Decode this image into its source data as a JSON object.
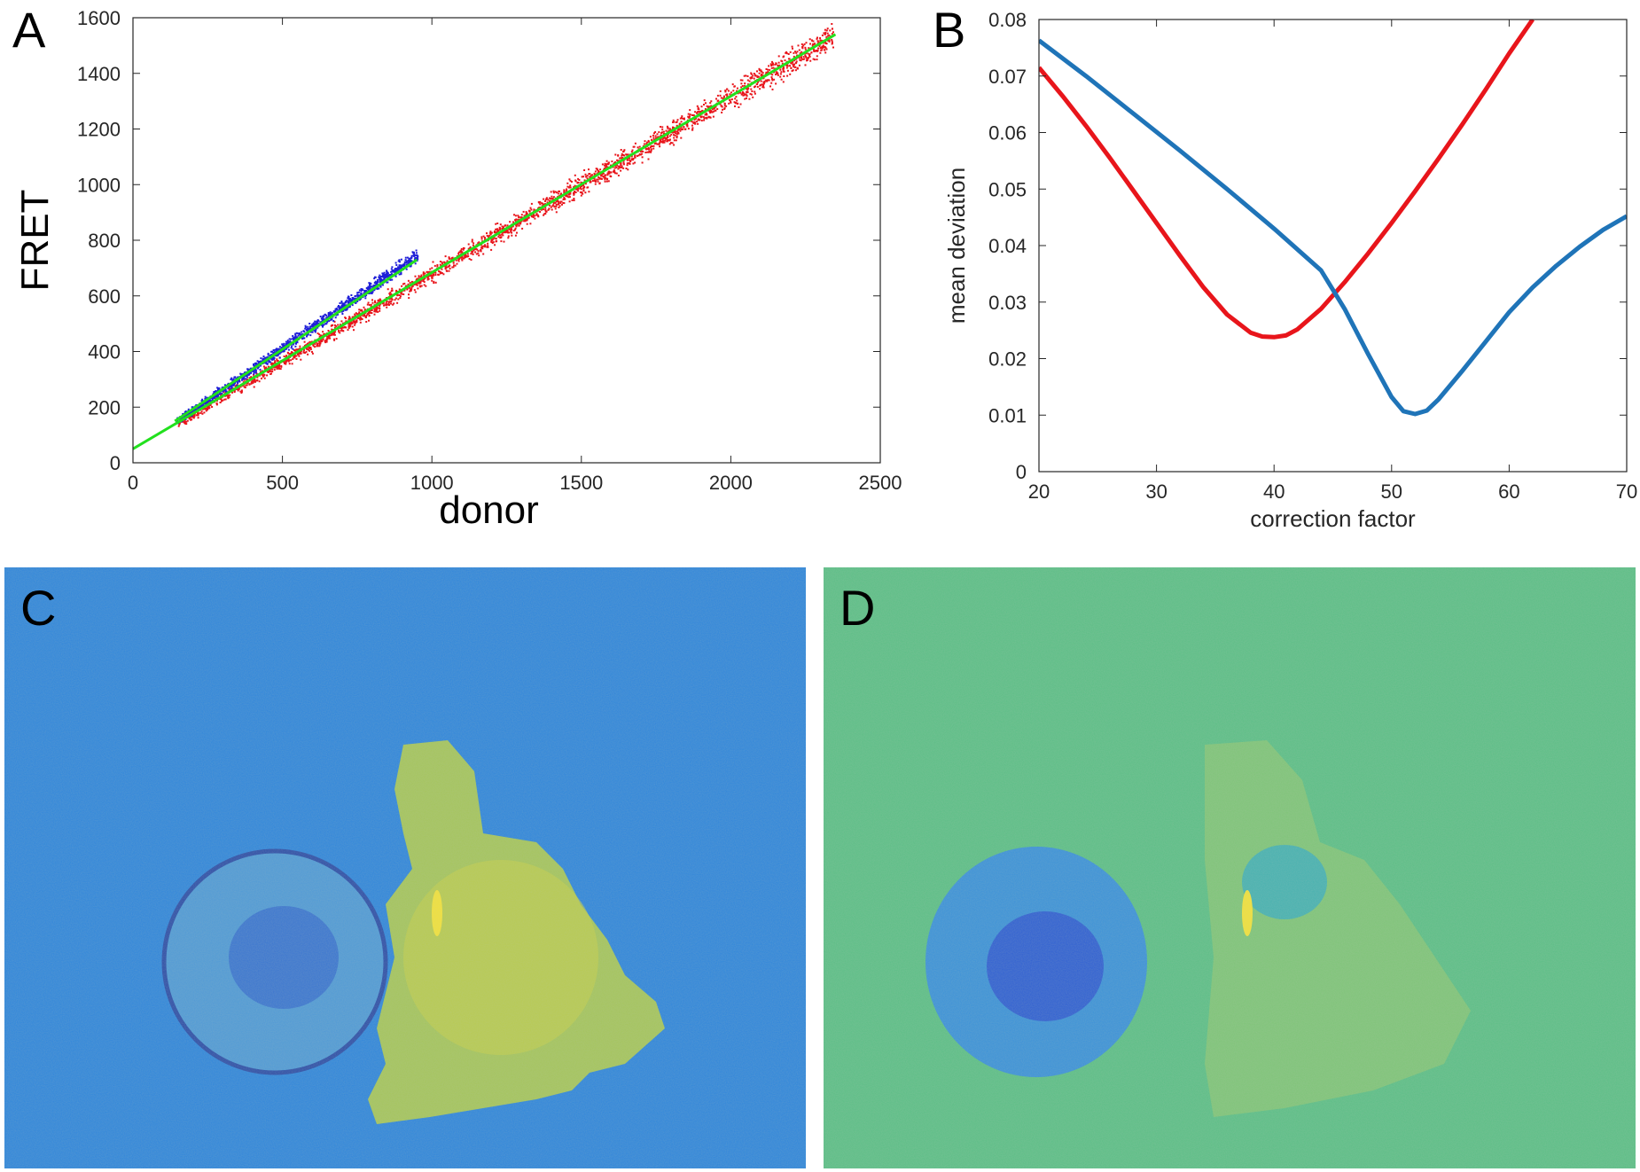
{
  "panels": {
    "a": {
      "letter": "A"
    },
    "b": {
      "letter": "B"
    },
    "c": {
      "letter": "C"
    },
    "d": {
      "letter": "D"
    }
  },
  "colors": {
    "red": "#e8151b",
    "blue": "#1f1fd8",
    "green": "#22e01e",
    "curve_red": "#e8151b",
    "curve_blue": "#1f74b8",
    "image_c_bg": "#2f86db",
    "image_d_bg": "#5cbf86"
  },
  "chart_data": [
    {
      "id": "A",
      "type": "scatter",
      "title": "",
      "xlabel": "donor",
      "ylabel": "FRET",
      "xlim": [
        0,
        2500
      ],
      "ylim": [
        0,
        1600
      ],
      "xticks": [
        0,
        500,
        1000,
        1500,
        2000,
        2500
      ],
      "yticks": [
        0,
        200,
        400,
        600,
        800,
        1000,
        1200,
        1400,
        1600
      ],
      "series": [
        {
          "name": "red scatter",
          "color": "red",
          "x_range": [
            150,
            2340
          ],
          "slope": 0.635,
          "intercept": 50,
          "spread": 22
        },
        {
          "name": "blue scatter",
          "color": "blue",
          "x_range": [
            140,
            950
          ],
          "slope": 0.74,
          "intercept": 45,
          "spread": 18
        }
      ],
      "fit_lines": [
        {
          "name": "fit red",
          "color": "green",
          "x": [
            0,
            2350
          ],
          "y": [
            50,
            1540
          ]
        },
        {
          "name": "fit blue",
          "color": "green",
          "x": [
            140,
            950
          ],
          "y": [
            150,
            730
          ]
        }
      ]
    },
    {
      "id": "B",
      "type": "line",
      "title": "",
      "xlabel": "correction factor",
      "ylabel": "mean deviation",
      "xlim": [
        20,
        70
      ],
      "ylim": [
        0,
        0.08
      ],
      "xticks": [
        20,
        30,
        40,
        50,
        60,
        70
      ],
      "yticks": [
        0,
        0.01,
        0.02,
        0.03,
        0.04,
        0.05,
        0.06,
        0.07,
        0.08
      ],
      "series": [
        {
          "name": "red curve",
          "color": "curve_red",
          "x": [
            20,
            22,
            24,
            26,
            28,
            30,
            32,
            34,
            36,
            38,
            39,
            40,
            41,
            42,
            44,
            46,
            48,
            50,
            52,
            54,
            56,
            58,
            60,
            62
          ],
          "y": [
            0.0715,
            0.0665,
            0.0612,
            0.0556,
            0.0498,
            0.044,
            0.0382,
            0.0326,
            0.0278,
            0.0246,
            0.0239,
            0.0238,
            0.0241,
            0.0252,
            0.0288,
            0.0335,
            0.0386,
            0.044,
            0.0496,
            0.0554,
            0.0614,
            0.0676,
            0.074,
            0.08
          ]
        },
        {
          "name": "blue curve",
          "color": "curve_blue",
          "x": [
            20,
            24,
            28,
            32,
            36,
            40,
            44,
            46,
            48,
            50,
            51,
            52,
            53,
            54,
            56,
            58,
            60,
            62,
            64,
            66,
            68,
            70
          ],
          "y": [
            0.0763,
            0.07,
            0.0634,
            0.0568,
            0.05,
            0.043,
            0.0356,
            0.0288,
            0.0208,
            0.0132,
            0.0107,
            0.0102,
            0.0108,
            0.0128,
            0.0178,
            0.023,
            0.0282,
            0.0326,
            0.0364,
            0.0398,
            0.0428,
            0.0452
          ]
        }
      ]
    }
  ]
}
